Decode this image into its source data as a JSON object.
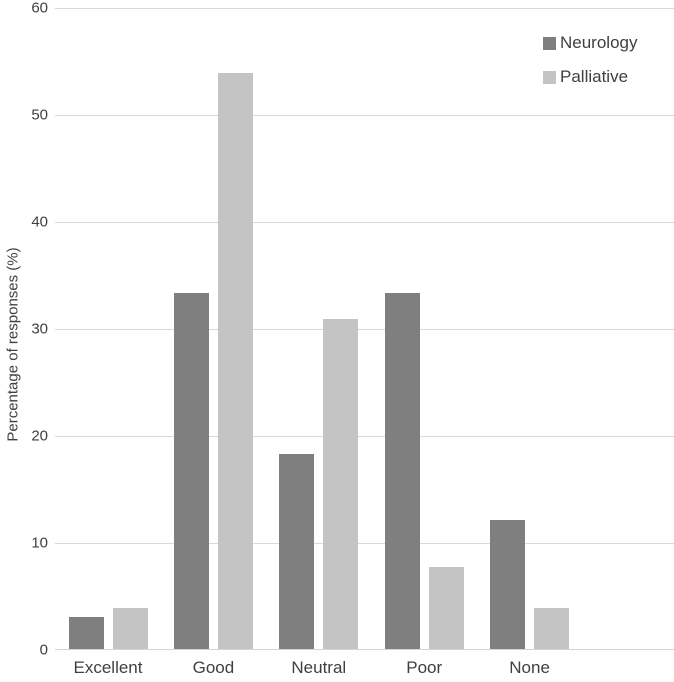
{
  "chart_data": {
    "type": "bar",
    "title": "",
    "categories": [
      "Excellent",
      "Good",
      "Neutral",
      "Poor",
      "None"
    ],
    "series": [
      {
        "name": "Neurology",
        "color": "#7f7f7f",
        "values": [
          3.0,
          33.3,
          18.2,
          33.3,
          12.1
        ]
      },
      {
        "name": "Palliative",
        "color": "#c4c4c4",
        "values": [
          3.8,
          53.8,
          30.8,
          7.7,
          3.8
        ]
      }
    ],
    "xlabel": "",
    "ylabel": "Percentage of responses (%)",
    "ylim": [
      0,
      60
    ],
    "yticks": [
      0,
      10,
      20,
      30,
      40,
      50,
      60
    ],
    "grid": true,
    "legend_position": "top-right",
    "gridline_color": "#d9d9d9",
    "text_color": "#3f3f3f",
    "background_color": "#ffffff"
  }
}
